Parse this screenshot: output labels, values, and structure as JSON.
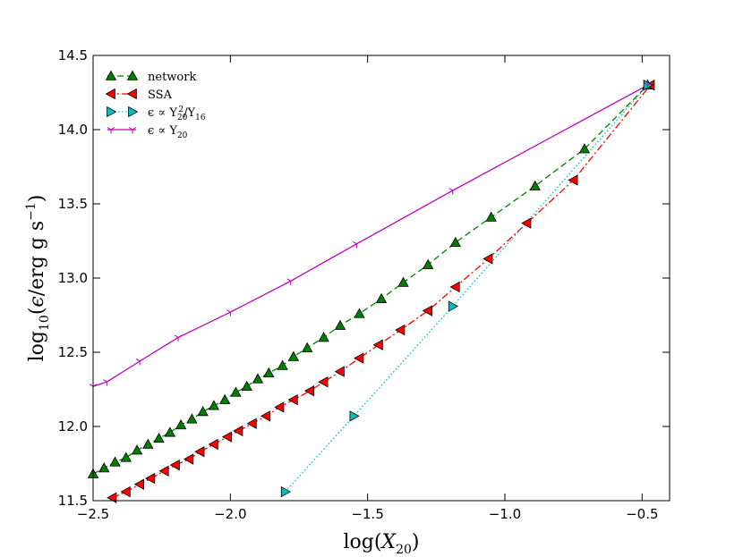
{
  "chart_data": {
    "type": "line",
    "title": "",
    "xlabel_parts": [
      "log(",
      "X",
      "20",
      ")"
    ],
    "ylabel_parts": [
      "log",
      "10",
      "(",
      "ϵ",
      "/erg g s",
      "−1",
      ")"
    ],
    "xlim": [
      -2.5,
      -0.4
    ],
    "ylim": [
      11.5,
      14.5
    ],
    "xticks": [
      -2.5,
      -2.0,
      -1.5,
      -1.0,
      -0.5
    ],
    "xtick_labels": [
      "−2.5",
      "−2.0",
      "−1.5",
      "−1.0",
      "−0.5"
    ],
    "yticks": [
      11.5,
      12.0,
      12.5,
      13.0,
      13.5,
      14.0,
      14.5
    ],
    "ytick_labels": [
      "11.5",
      "12.0",
      "12.5",
      "13.0",
      "13.5",
      "14.0",
      "14.5"
    ],
    "legend_position": "top-left",
    "series": [
      {
        "name": "network",
        "legend_parts": [
          "network"
        ],
        "color": "#008000",
        "marker": "triangle-up",
        "linestyle": "dashed",
        "x": [
          -2.5,
          -2.46,
          -2.42,
          -2.38,
          -2.34,
          -2.3,
          -2.26,
          -2.22,
          -2.18,
          -2.14,
          -2.1,
          -2.06,
          -2.02,
          -1.98,
          -1.94,
          -1.9,
          -1.86,
          -1.81,
          -1.77,
          -1.72,
          -1.66,
          -1.6,
          -1.53,
          -1.45,
          -1.37,
          -1.28,
          -1.18,
          -1.05,
          -0.89,
          -0.71,
          -0.48
        ],
        "y": [
          11.68,
          11.72,
          11.76,
          11.79,
          11.84,
          11.88,
          11.92,
          11.96,
          12.01,
          12.05,
          12.1,
          12.14,
          12.18,
          12.23,
          12.27,
          12.32,
          12.36,
          12.41,
          12.47,
          12.53,
          12.6,
          12.68,
          12.76,
          12.86,
          12.97,
          13.09,
          13.24,
          13.41,
          13.62,
          13.87,
          14.3
        ]
      },
      {
        "name": "SSA",
        "legend_parts": [
          "SSA"
        ],
        "color": "#ff0000",
        "marker": "triangle-left",
        "linestyle": "dashdot",
        "x": [
          -2.43,
          -2.38,
          -2.33,
          -2.29,
          -2.24,
          -2.2,
          -2.15,
          -2.11,
          -2.06,
          -2.01,
          -1.97,
          -1.92,
          -1.87,
          -1.82,
          -1.77,
          -1.71,
          -1.66,
          -1.6,
          -1.53,
          -1.46,
          -1.38,
          -1.28,
          -1.18,
          -1.06,
          -0.92,
          -0.75,
          -0.47
        ],
        "y": [
          11.52,
          11.56,
          11.61,
          11.65,
          11.7,
          11.74,
          11.78,
          11.83,
          11.88,
          11.93,
          11.97,
          12.02,
          12.07,
          12.13,
          12.18,
          12.24,
          12.3,
          12.37,
          12.46,
          12.55,
          12.65,
          12.78,
          12.94,
          13.13,
          13.37,
          13.66,
          14.3
        ]
      },
      {
        "name": "ϵ ∝ Y20²/Y16",
        "legend_parts": [
          "ϵ ∝ Y",
          "20",
          "2",
          "/Y",
          "16"
        ],
        "color": "#00bfbf",
        "marker": "triangle-right",
        "linestyle": "dotted",
        "x": [
          -1.8,
          -1.55,
          -1.19,
          -0.48
        ],
        "y": [
          11.56,
          12.07,
          12.81,
          14.3
        ]
      },
      {
        "name": "ϵ ∝ Y20",
        "legend_parts": [
          "ϵ ∝ Y",
          "20"
        ],
        "color": "#bf00bf",
        "marker": "tri-down",
        "linestyle": "solid",
        "x": [
          -2.5,
          -2.45,
          -2.33,
          -2.19,
          -2.0,
          -1.78,
          -1.54,
          -1.19,
          -0.48
        ],
        "y": [
          12.27,
          12.3,
          12.44,
          12.6,
          12.77,
          12.98,
          13.23,
          13.59,
          14.3
        ]
      }
    ]
  }
}
